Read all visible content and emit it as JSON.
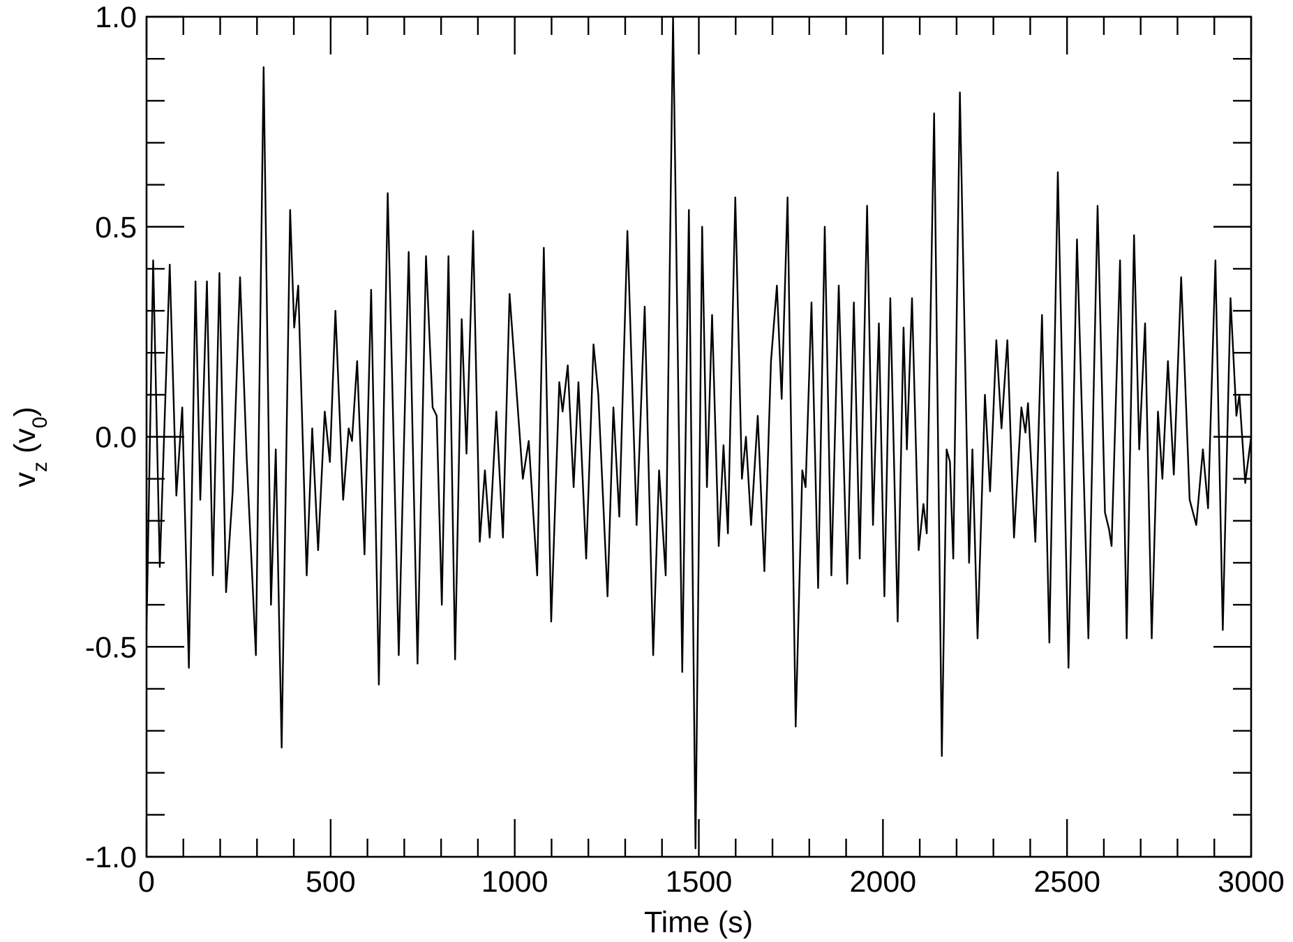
{
  "chart_data": {
    "type": "line",
    "xlabel": "Time (s)",
    "ylabel": [
      "v",
      "z",
      " (v",
      "0",
      ")"
    ],
    "xlim": [
      0,
      3000
    ],
    "ylim": [
      -1,
      1
    ],
    "xticks": [
      0,
      500,
      1000,
      1500,
      2000,
      2500,
      3000
    ],
    "yticks": [
      {
        "value": -1,
        "label": "-1.0"
      },
      {
        "value": -0.5,
        "label": "-0.5"
      },
      {
        "value": 0,
        "label": "0.0"
      },
      {
        "value": 0.5,
        "label": "0.5"
      },
      {
        "value": 1,
        "label": "1.0"
      }
    ],
    "xminorticks": [
      100,
      200,
      300,
      400,
      600,
      700,
      800,
      900,
      1100,
      1200,
      1300,
      1400,
      1600,
      1700,
      1800,
      1900,
      2100,
      2200,
      2300,
      2400,
      2600,
      2700,
      2800,
      2900
    ],
    "yminorticks": [
      -0.9,
      -0.8,
      -0.7,
      -0.6,
      -0.4,
      -0.3,
      -0.2,
      -0.1,
      0.1,
      0.2,
      0.3,
      0.4,
      0.6,
      0.7,
      0.8,
      0.9
    ],
    "grid": false,
    "x": [
      0,
      18,
      36,
      63,
      81,
      97,
      115,
      133,
      146,
      164,
      180,
      198,
      216,
      234,
      254,
      272,
      297,
      318,
      338,
      351,
      367,
      390,
      401,
      412,
      435,
      450,
      466,
      484,
      498,
      513,
      534,
      549,
      558,
      572,
      592,
      610,
      631,
      655,
      685,
      712,
      736,
      759,
      777,
      788,
      802,
      820,
      838,
      856,
      869,
      887,
      905,
      919,
      932,
      950,
      968,
      986,
      1022,
      1038,
      1061,
      1079,
      1099,
      1121,
      1130,
      1144,
      1160,
      1173,
      1194,
      1214,
      1227,
      1252,
      1268,
      1284,
      1306,
      1331,
      1353,
      1376,
      1392,
      1410,
      1430,
      1455,
      1473,
      1491,
      1509,
      1522,
      1536,
      1554,
      1567,
      1579,
      1599,
      1617,
      1628,
      1642,
      1660,
      1678,
      1696,
      1712,
      1725,
      1741,
      1763,
      1781,
      1790,
      1806,
      1824,
      1842,
      1860,
      1880,
      1903,
      1921,
      1937,
      1957,
      1973,
      1989,
      2004,
      2020,
      2040,
      2056,
      2065,
      2079,
      2097,
      2110,
      2119,
      2139,
      2160,
      2173,
      2182,
      2191,
      2209,
      2234,
      2243,
      2257,
      2277,
      2291,
      2308,
      2322,
      2338,
      2356,
      2376,
      2387,
      2394,
      2414,
      2432,
      2452,
      2475,
      2504,
      2527,
      2558,
      2583,
      2603,
      2614,
      2621,
      2644,
      2662,
      2682,
      2696,
      2712,
      2730,
      2747,
      2759,
      2774,
      2790,
      2810,
      2833,
      2851,
      2869,
      2883,
      2903,
      2923,
      2944,
      2960,
      2968,
      2984,
      3000
    ],
    "series": [
      {
        "color": "#000000",
        "values": [
          -0.46,
          0.42,
          -0.31,
          0.41,
          -0.14,
          0.07,
          -0.55,
          0.37,
          -0.15,
          0.37,
          -0.33,
          0.39,
          -0.37,
          -0.13,
          0.38,
          -0.05,
          -0.52,
          0.88,
          -0.4,
          -0.03,
          -0.74,
          0.54,
          0.26,
          0.36,
          -0.33,
          0.02,
          -0.27,
          0.06,
          -0.06,
          0.3,
          -0.15,
          0.02,
          -0.01,
          0.18,
          -0.28,
          0.35,
          -0.59,
          0.58,
          -0.52,
          0.44,
          -0.54,
          0.43,
          0.07,
          0.05,
          -0.4,
          0.43,
          -0.53,
          0.28,
          -0.04,
          0.49,
          -0.25,
          -0.08,
          -0.24,
          0.06,
          -0.24,
          0.34,
          -0.1,
          -0.01,
          -0.33,
          0.45,
          -0.44,
          0.13,
          0.06,
          0.17,
          -0.12,
          0.13,
          -0.29,
          0.22,
          0.1,
          -0.38,
          0.07,
          -0.19,
          0.49,
          -0.21,
          0.31,
          -0.52,
          -0.08,
          -0.33,
          1.0,
          -0.56,
          0.54,
          -0.98,
          0.5,
          -0.12,
          0.29,
          -0.26,
          -0.02,
          -0.23,
          0.57,
          -0.1,
          0.0,
          -0.21,
          0.05,
          -0.32,
          0.18,
          0.36,
          0.09,
          0.57,
          -0.69,
          -0.08,
          -0.12,
          0.32,
          -0.36,
          0.5,
          -0.33,
          0.36,
          -0.35,
          0.32,
          -0.29,
          0.55,
          -0.21,
          0.27,
          -0.38,
          0.33,
          -0.44,
          0.26,
          -0.03,
          0.33,
          -0.27,
          -0.16,
          -0.23,
          0.77,
          -0.76,
          -0.03,
          -0.06,
          -0.29,
          0.82,
          -0.3,
          -0.03,
          -0.48,
          0.1,
          -0.13,
          0.23,
          0.02,
          0.23,
          -0.24,
          0.07,
          0.01,
          0.08,
          -0.25,
          0.29,
          -0.49,
          0.63,
          -0.55,
          0.47,
          -0.48,
          0.55,
          -0.18,
          -0.22,
          -0.26,
          0.42,
          -0.48,
          0.48,
          -0.03,
          0.27,
          -0.48,
          0.06,
          -0.1,
          0.18,
          -0.09,
          0.38,
          -0.15,
          -0.21,
          -0.03,
          -0.17,
          0.42,
          -0.46,
          0.33,
          0.05,
          0.1,
          -0.11,
          0.0
        ]
      }
    ]
  }
}
